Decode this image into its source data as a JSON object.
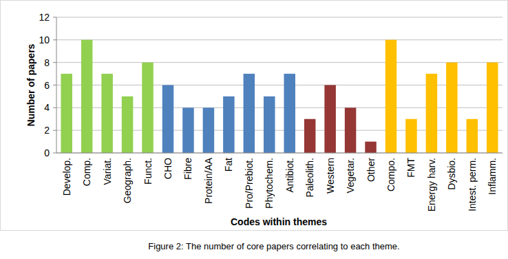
{
  "chart_data": {
    "type": "bar",
    "title": "Figure 2: The number of core papers correlating to each theme.",
    "x_label": "Codes within themes",
    "y_label": "Number of papers",
    "categories": [
      "Develop.",
      "Comp.",
      "Variat.",
      "Geograph.",
      "Funct.",
      "CHO",
      "Fibre",
      "Protein/AA",
      "Fat",
      "Pro/Prebiot.",
      "Phytochem.",
      "Antibiot.",
      "Paleolith.",
      "Western",
      "Vegetar.",
      "Other",
      "Compo.",
      "FMT",
      "Energy harv.",
      "Dysbio.",
      "Intest. perm.",
      "Inflamm."
    ],
    "values": [
      7,
      10,
      7,
      5,
      8,
      6,
      4,
      4,
      5,
      7,
      5,
      7,
      3,
      6,
      4,
      1,
      10,
      3,
      7,
      8,
      3,
      8
    ],
    "colors": [
      "#92d050",
      "#92d050",
      "#92d050",
      "#92d050",
      "#92d050",
      "#4f81bd",
      "#4f81bd",
      "#4f81bd",
      "#4f81bd",
      "#4f81bd",
      "#4f81bd",
      "#4f81bd",
      "#953735",
      "#953735",
      "#953735",
      "#953735",
      "#ffc000",
      "#ffc000",
      "#ffc000",
      "#ffc000",
      "#ffc000",
      "#ffc000"
    ],
    "ylim": [
      0,
      12
    ],
    "yticks": [
      0,
      2,
      4,
      6,
      8,
      10,
      12
    ],
    "grid": true
  }
}
